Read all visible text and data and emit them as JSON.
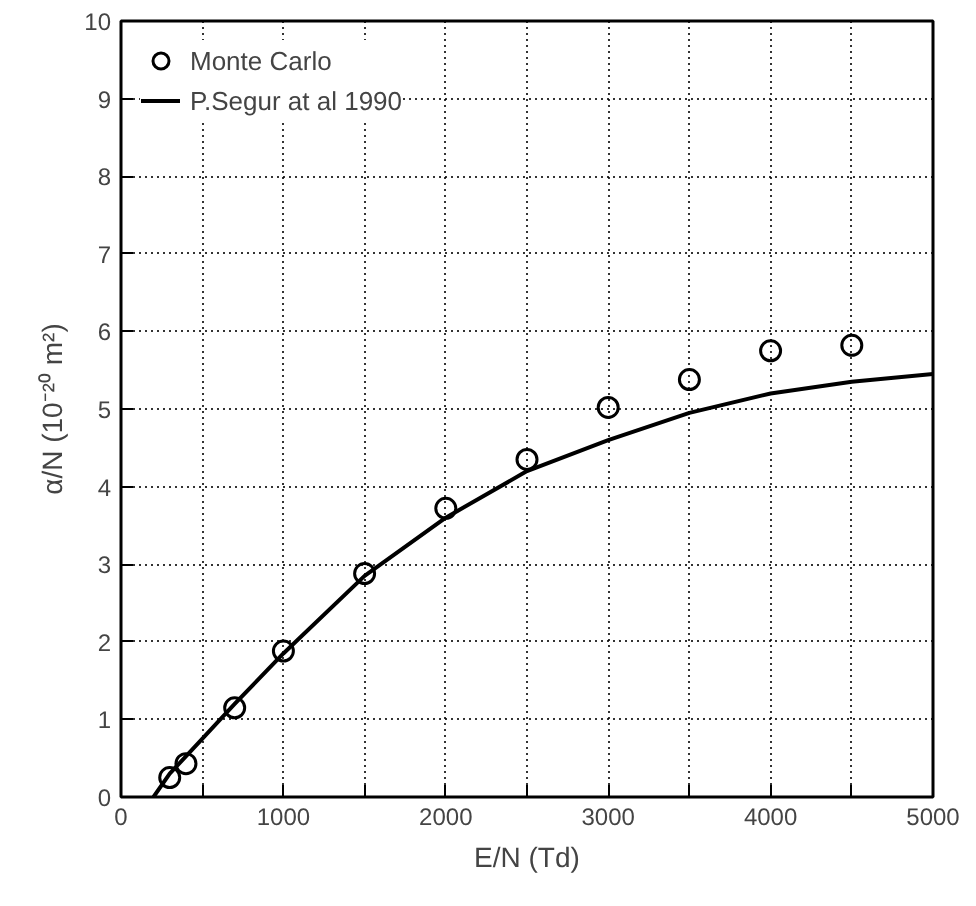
{
  "chart_data": {
    "type": "scatter",
    "xlabel": "E/N (Td)",
    "ylabel": "α/N (10⁻²⁰ m²)",
    "xlim": [
      0,
      5000
    ],
    "ylim": [
      0,
      10
    ],
    "xticks": [
      0,
      {
        "value": 500,
        "label": null
      },
      1000,
      {
        "value": 1500,
        "label": null
      },
      2000,
      {
        "value": 2500,
        "label": null
      },
      3000,
      {
        "value": 3500,
        "label": null
      },
      4000,
      {
        "value": 4500,
        "label": null
      },
      5000
    ],
    "yticks": [
      0,
      1,
      2,
      3,
      4,
      5,
      6,
      7,
      8,
      9,
      10
    ],
    "grid": true,
    "legend": "top left",
    "series": [
      {
        "name": "Monte Carlo",
        "marker": "circle",
        "color": "#000000",
        "x": [
          300,
          400,
          700,
          1000,
          1500,
          2000,
          2500,
          3000,
          3500,
          4000,
          4500
        ],
        "values": [
          0.25,
          0.43,
          1.15,
          1.88,
          2.88,
          3.72,
          4.35,
          5.02,
          5.38,
          5.75,
          5.82
        ]
      },
      {
        "name": "P.Segur at al 1990",
        "type": "line",
        "line_style": "solid",
        "color": "#000000",
        "x": [
          200,
          300,
          500,
          700,
          1000,
          1500,
          2000,
          2500,
          3000,
          3500,
          4000,
          4500,
          5000
        ],
        "values": [
          0.0,
          0.3,
          0.75,
          1.2,
          1.85,
          2.85,
          3.6,
          4.2,
          4.6,
          4.95,
          5.2,
          5.35,
          5.45
        ]
      }
    ]
  }
}
